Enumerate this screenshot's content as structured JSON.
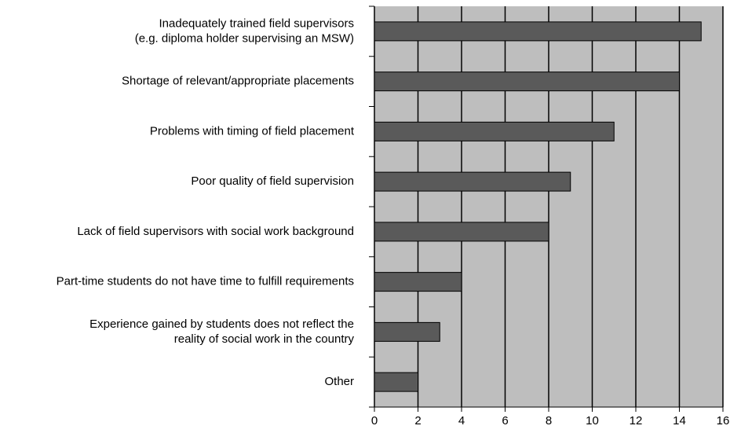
{
  "chart_data": {
    "type": "bar",
    "orientation": "horizontal",
    "categories": [
      [
        "Inadequately trained field supervisors",
        "(e.g. diploma holder supervising an MSW)"
      ],
      [
        "Shortage of relevant/appropriate placements"
      ],
      [
        "Problems with timing of field placement"
      ],
      [
        "Poor quality of field supervision"
      ],
      [
        "Lack of field supervisors with social work background"
      ],
      [
        "Part-time students do not have time to fulfill requirements"
      ],
      [
        "Experience gained by students does not reflect the",
        "reality of social work in the country"
      ],
      [
        "Other"
      ]
    ],
    "values": [
      15,
      14,
      11,
      9,
      8,
      4,
      3,
      2
    ],
    "color": "#5a5a5a",
    "background": "#bebebe",
    "xlim": [
      0,
      16
    ],
    "xticks": [
      0,
      2,
      4,
      6,
      8,
      10,
      12,
      14,
      16
    ],
    "grid": true
  }
}
